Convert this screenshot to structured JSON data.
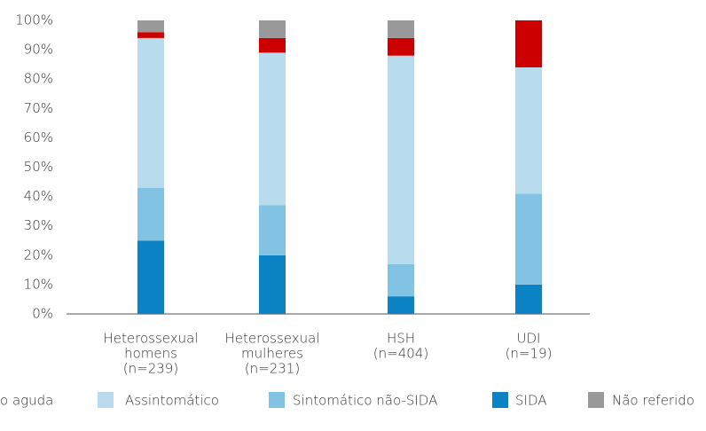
{
  "chart_data": {
    "type": "stacked_bar",
    "categories": [
      [
        "Heterossexual",
        "homens",
        "(n=239)"
      ],
      [
        "Heterossexual",
        "mulheres",
        "(n=231)"
      ],
      [
        "HSH",
        "(n=404)"
      ],
      [
        "UDI",
        "(n=19)"
      ]
    ],
    "series": [
      {
        "name": "SIDA",
        "color": "#0a82c4",
        "values": [
          25,
          20,
          6,
          10
        ]
      },
      {
        "name": "Sintomático não-SIDA",
        "color": "#82c3e3",
        "values": [
          18,
          17,
          11,
          31
        ]
      },
      {
        "name": "Assintomático",
        "color": "#b8dcee",
        "values": [
          51,
          52,
          71,
          43
        ]
      },
      {
        "name": "o aguda",
        "color": "#cc0000",
        "values": [
          2,
          5,
          6,
          16
        ]
      },
      {
        "name": "Não referido",
        "color": "#999999",
        "values": [
          4,
          6,
          6,
          0
        ]
      }
    ],
    "ylim": [
      0,
      100
    ],
    "yticks": [
      {
        "value": 0,
        "label": "0%"
      },
      {
        "value": 10,
        "label": "10%"
      },
      {
        "value": 20,
        "label": "20%"
      },
      {
        "value": 30,
        "label": "30%"
      },
      {
        "value": 40,
        "label": "40%"
      },
      {
        "value": 50,
        "label": "50%"
      },
      {
        "value": 60,
        "label": "60%"
      },
      {
        "value": 70,
        "label": "70%"
      },
      {
        "value": 80,
        "label": "80%"
      },
      {
        "value": 90,
        "label": "90%"
      },
      {
        "value": 100,
        "label": "100%"
      }
    ],
    "legend_order": [
      3,
      2,
      1,
      0,
      4
    ]
  }
}
